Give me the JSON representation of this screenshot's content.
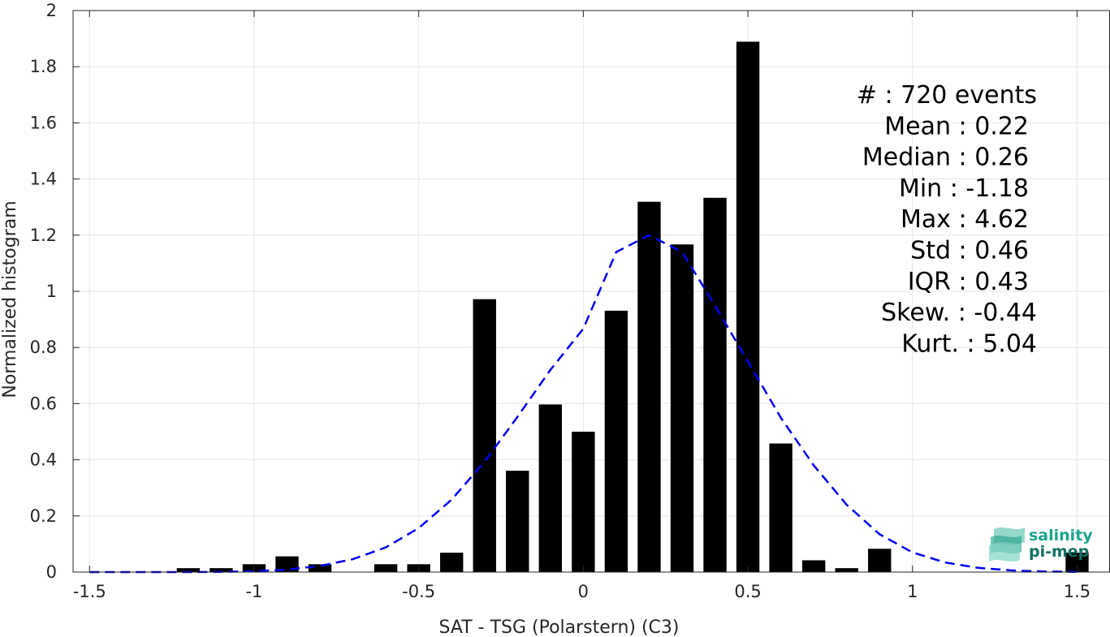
{
  "chart_data": {
    "type": "bar",
    "title": "",
    "xlabel": "SAT - TSG (Polarstern) (C3)",
    "ylabel": "Normalized histogram",
    "xlim": [
      -1.55,
      1.6
    ],
    "ylim": [
      0,
      2
    ],
    "grid": true,
    "x_ticks": [
      -1.5,
      -1,
      -0.5,
      0,
      0.5,
      1,
      1.5
    ],
    "x_tick_labels": [
      "-1.5",
      "-1",
      "-0.5",
      "0",
      "0.5",
      "1",
      "1.5"
    ],
    "y_ticks": [
      0,
      0.2,
      0.4,
      0.6,
      0.8,
      1,
      1.2,
      1.4,
      1.6,
      1.8,
      2
    ],
    "y_tick_labels": [
      "0",
      "0.2",
      "0.4",
      "0.6",
      "0.8",
      "1",
      "1.2",
      "1.4",
      "1.6",
      "1.8",
      "2"
    ],
    "bar_width": 0.07,
    "bar_color": "#000000",
    "bins": [
      {
        "x": -1.2,
        "y": 0.014
      },
      {
        "x": -1.1,
        "y": 0.014
      },
      {
        "x": -1.0,
        "y": 0.028
      },
      {
        "x": -0.9,
        "y": 0.056
      },
      {
        "x": -0.8,
        "y": 0.028
      },
      {
        "x": -0.6,
        "y": 0.028
      },
      {
        "x": -0.5,
        "y": 0.028
      },
      {
        "x": -0.4,
        "y": 0.069
      },
      {
        "x": -0.3,
        "y": 0.972
      },
      {
        "x": -0.2,
        "y": 0.361
      },
      {
        "x": -0.1,
        "y": 0.597
      },
      {
        "x": 0.0,
        "y": 0.5
      },
      {
        "x": 0.1,
        "y": 0.931
      },
      {
        "x": 0.2,
        "y": 1.319
      },
      {
        "x": 0.3,
        "y": 1.167
      },
      {
        "x": 0.4,
        "y": 1.333
      },
      {
        "x": 0.5,
        "y": 1.889
      },
      {
        "x": 0.6,
        "y": 0.458
      },
      {
        "x": 0.7,
        "y": 0.042
      },
      {
        "x": 0.8,
        "y": 0.014
      },
      {
        "x": 0.9,
        "y": 0.083
      },
      {
        "x": 1.5,
        "y": 0.069
      }
    ],
    "fit_curve": {
      "style": "dashed",
      "color": "#0000ee",
      "x": [
        -1.5,
        -1.4,
        -1.3,
        -1.2,
        -1.1,
        -1.0,
        -0.9,
        -0.8,
        -0.7,
        -0.6,
        -0.5,
        -0.4,
        -0.3,
        -0.2,
        -0.1,
        0.0,
        0.1,
        0.2,
        0.3,
        0.4,
        0.5,
        0.6,
        0.7,
        0.8,
        0.9,
        1.0,
        1.1,
        1.2,
        1.3,
        1.4,
        1.5
      ],
      "y": [
        0.0,
        0.0,
        0.0,
        0.0,
        0.001,
        0.003,
        0.009,
        0.022,
        0.046,
        0.088,
        0.157,
        0.258,
        0.393,
        0.553,
        0.72,
        0.867,
        1.14,
        1.2,
        1.14,
        0.95,
        0.75,
        0.55,
        0.38,
        0.24,
        0.135,
        0.07,
        0.034,
        0.015,
        0.006,
        0.002,
        0.001
      ]
    },
    "stats": {
      "lines": [
        "#  : 720 events",
        "Mean : 0.22",
        "Median : 0.26",
        "Min : -1.18",
        "Max : 4.62",
        "Std : 0.46",
        "IQR : 0.43",
        "Skew. : -0.44",
        "Kurt. : 5.04"
      ]
    }
  },
  "logo": {
    "line1": "salinity",
    "line2": "pi-mep",
    "color": "#1aa58e"
  }
}
